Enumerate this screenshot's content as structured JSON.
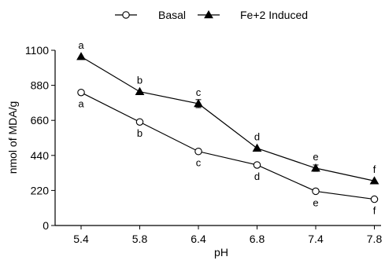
{
  "chart_data": {
    "type": "line",
    "title": "",
    "xlabel": "pH",
    "ylabel": "nmol of MDA/g",
    "categories": [
      "5.4",
      "5.8",
      "6.4",
      "6.8",
      "7.4",
      "7.8"
    ],
    "ylim": [
      0,
      1100
    ],
    "yticks": [
      0,
      220,
      440,
      660,
      880,
      1100
    ],
    "grid": false,
    "legend_position": "top-center",
    "series": [
      {
        "name": "Basal",
        "marker": "open-circle",
        "color": "#000000",
        "values": [
          835,
          650,
          465,
          380,
          215,
          165
        ],
        "error": [
          0,
          0,
          0,
          0,
          0,
          0
        ],
        "labels": [
          "a",
          "b",
          "c",
          "d",
          "e",
          "f"
        ],
        "label_position": "below"
      },
      {
        "name": "Fe+2 Induced",
        "marker": "filled-triangle",
        "color": "#000000",
        "values": [
          1060,
          840,
          765,
          485,
          360,
          280
        ],
        "error": [
          0,
          0,
          25,
          0,
          20,
          0
        ],
        "labels": [
          "a",
          "b",
          "c",
          "d",
          "e",
          "f"
        ],
        "label_position": "above"
      }
    ]
  }
}
